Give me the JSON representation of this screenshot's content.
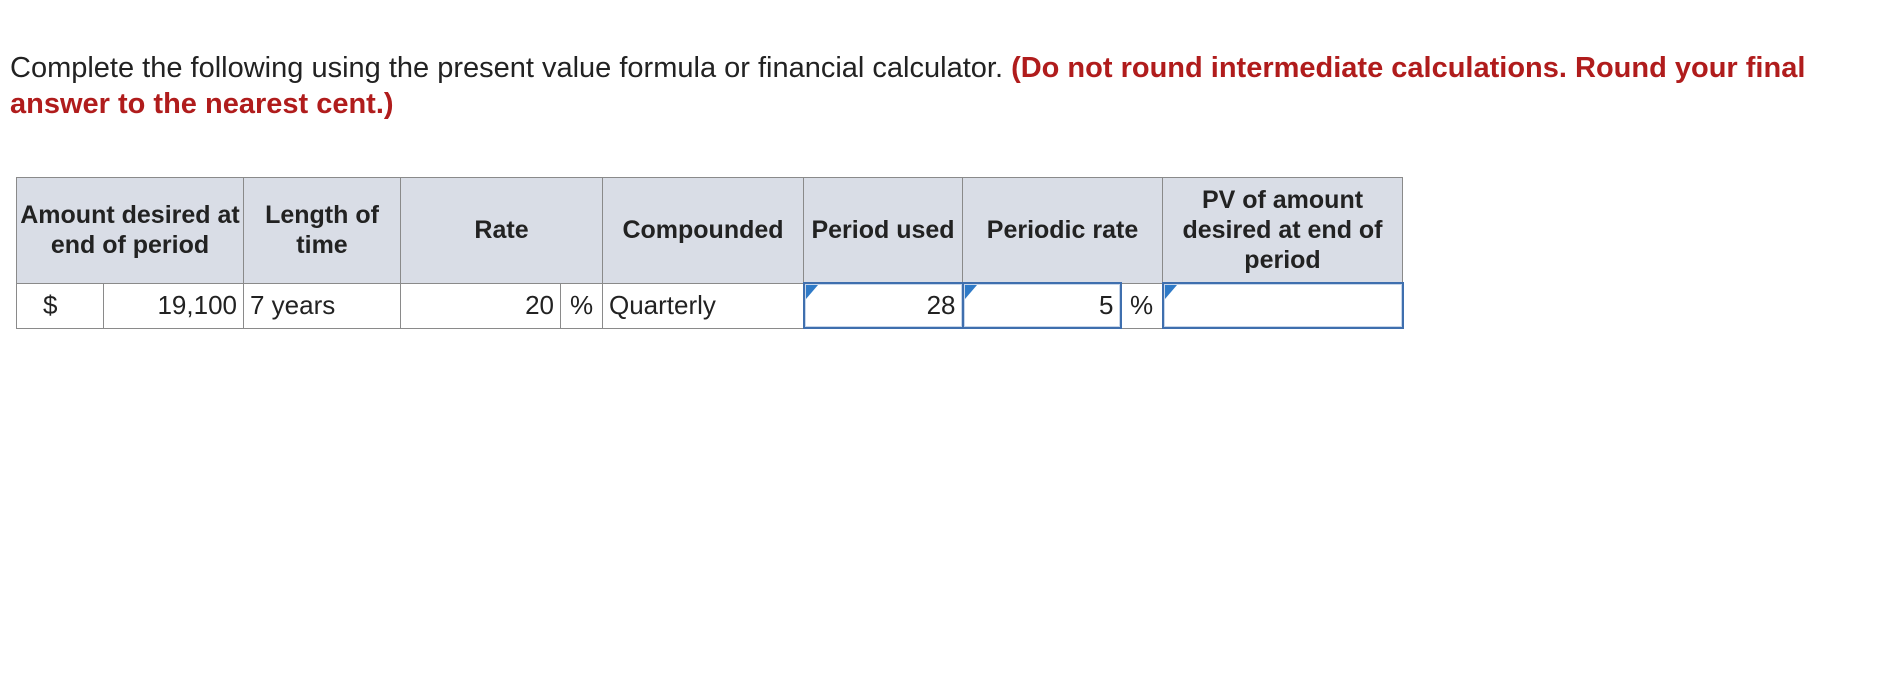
{
  "instructions": {
    "text": "Complete the following using the present value formula or financial calculator.",
    "emphasis": "(Do not round intermediate calculations. Round your final answer to the nearest cent.)"
  },
  "table": {
    "headers": {
      "amount": "Amount desired at end of period",
      "length": "Length of time",
      "rate": "Rate",
      "compounded": "Compounded",
      "period_used": "Period used",
      "periodic_rate": "Periodic rate",
      "pv": "PV of amount desired at end of period"
    },
    "row": {
      "currency_symbol": "$",
      "amount": "19,100",
      "length": "7 years",
      "rate": "20",
      "rate_unit": "%",
      "compounded": "Quarterly",
      "period_used": "28",
      "periodic_rate": "5",
      "periodic_rate_unit": "%",
      "pv": ""
    }
  },
  "colors": {
    "emphasis": "#b01c1c",
    "header_bg": "#d9dde6",
    "input_border": "#3f6fae",
    "input_marker": "#2f7ac7"
  }
}
